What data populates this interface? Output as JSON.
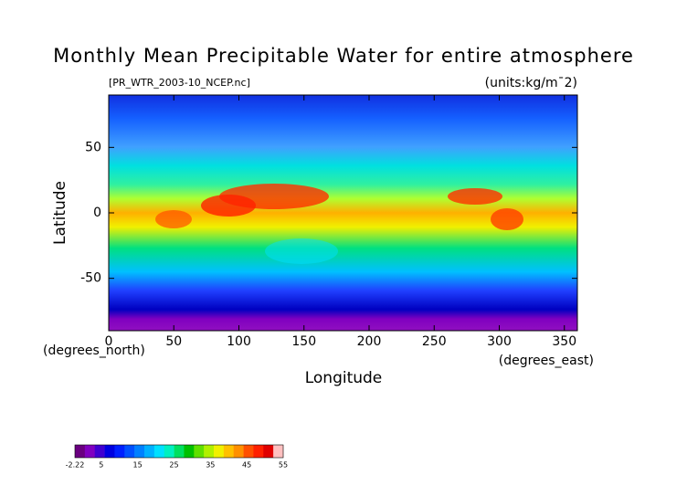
{
  "chart_data": {
    "type": "map",
    "title": "Monthly Mean Precipitable Water for entire atmosphere",
    "subtitle": "[PR_WTR_2003-10_NCEP.nc]",
    "units": "(units:kg/m¯2)",
    "x_label": "Longitude",
    "y_label": "Latitude",
    "x_unit": "(degrees_east)",
    "y_unit": "(degrees_north)",
    "xlim": [
      0,
      360
    ],
    "ylim": [
      -90,
      90
    ],
    "xticks": [
      0,
      50,
      100,
      150,
      200,
      250,
      300,
      350
    ],
    "yticks": [
      -50,
      0,
      50
    ],
    "colorbar": {
      "lim": [
        -2.22,
        55
      ],
      "ticks": [
        -2.22,
        5,
        15,
        25,
        35,
        45,
        55
      ],
      "colors": [
        "#6a0080",
        "#8000c0",
        "#4000d0",
        "#0000e0",
        "#0020ff",
        "#0050ff",
        "#0080ff",
        "#00b0ff",
        "#00e0ff",
        "#00f0c0",
        "#00e060",
        "#00c000",
        "#60e000",
        "#b0f000",
        "#f0f000",
        "#ffc000",
        "#ff9000",
        "#ff5000",
        "#ff2000",
        "#e00000",
        "#ffc0c0"
      ]
    }
  }
}
